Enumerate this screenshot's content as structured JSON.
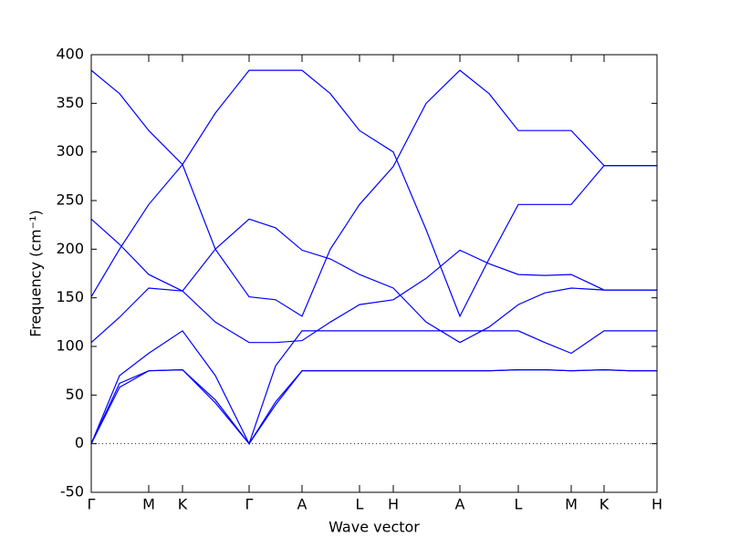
{
  "chart_data": {
    "type": "line",
    "xlabel": "Wave vector",
    "ylabel": "Frequency (cm⁻¹)",
    "x": [
      0,
      31,
      63,
      100,
      136,
      173,
      202,
      231,
      262,
      294,
      331,
      367,
      404,
      436,
      468,
      497,
      526,
      562,
      591,
      620
    ],
    "series": [
      {
        "color": "#0000ff",
        "values": [
          0,
          62,
          75,
          76,
          45,
          0,
          40,
          75,
          75,
          75,
          75,
          75,
          75,
          75,
          76,
          76,
          75,
          76,
          75,
          75
        ]
      },
      {
        "color": "#0000ff",
        "values": [
          0,
          58,
          75,
          76,
          42,
          0,
          43,
          75,
          75,
          75,
          75,
          75,
          75,
          75,
          76,
          76,
          75,
          76,
          75,
          75
        ]
      },
      {
        "color": "#0000ff",
        "values": [
          0,
          70,
          93,
          116,
          70,
          0,
          80,
          116,
          116,
          116,
          116,
          116,
          116,
          116,
          116,
          104,
          93,
          116,
          116,
          116
        ]
      },
      {
        "color": "#0000ff",
        "values": [
          104,
          130,
          160,
          157,
          125,
          104,
          104,
          106,
          125,
          143,
          148,
          170,
          199,
          185,
          174,
          173,
          174,
          158,
          158,
          158
        ]
      },
      {
        "color": "#0000ff",
        "values": [
          231,
          205,
          174,
          157,
          200,
          231,
          222,
          199,
          190,
          174,
          160,
          125,
          104,
          120,
          143,
          155,
          160,
          158,
          158,
          158
        ]
      },
      {
        "color": "#0000ff",
        "values": [
          151,
          200,
          246,
          287,
          340,
          384,
          384,
          384,
          360,
          322,
          300,
          220,
          131,
          190,
          246,
          246,
          246,
          286,
          286,
          286
        ]
      },
      {
        "color": "#0000ff",
        "values": [
          384,
          360,
          322,
          287,
          200,
          151,
          148,
          131,
          200,
          246,
          285,
          350,
          384,
          360,
          322,
          322,
          322,
          286,
          286,
          286
        ]
      }
    ],
    "xlim": [
      0,
      620
    ],
    "xticks": [
      {
        "value": 0,
        "label": "Γ"
      },
      {
        "value": 63,
        "label": "M"
      },
      {
        "value": 100,
        "label": "K"
      },
      {
        "value": 173,
        "label": "Γ"
      },
      {
        "value": 231,
        "label": "A"
      },
      {
        "value": 294,
        "label": "L"
      },
      {
        "value": 331,
        "label": "H"
      },
      {
        "value": 404,
        "label": "A"
      },
      {
        "value": 468,
        "label": "L"
      },
      {
        "value": 526,
        "label": "M"
      },
      {
        "value": 562,
        "label": "K"
      },
      {
        "value": 620,
        "label": "H"
      }
    ],
    "ylim": [
      -50,
      400
    ],
    "yticks": [
      -50,
      0,
      50,
      100,
      150,
      200,
      250,
      300,
      350,
      400
    ],
    "hline": 0
  }
}
